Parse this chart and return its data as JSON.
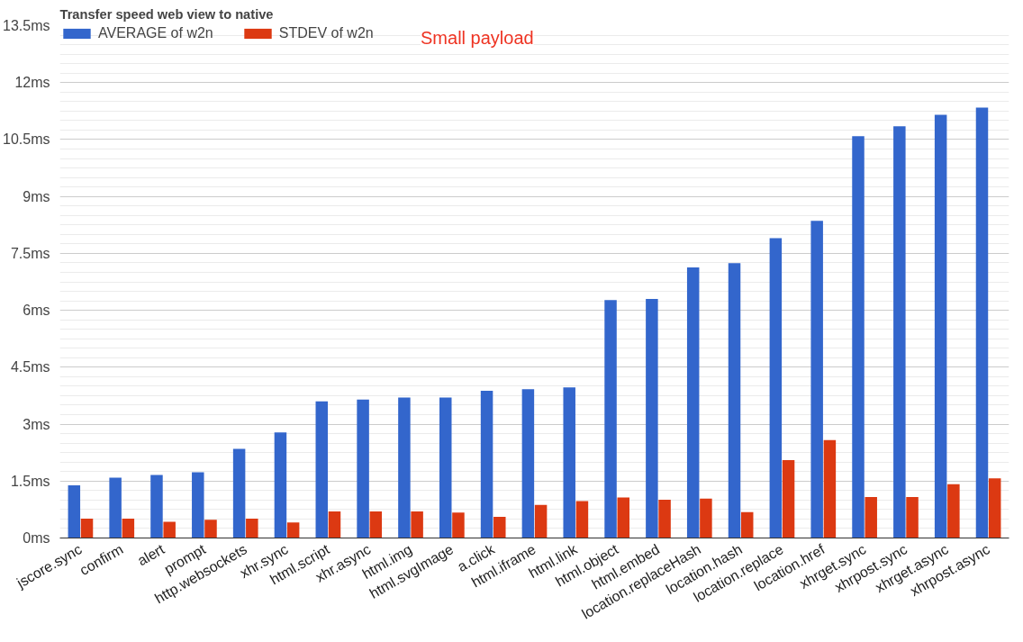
{
  "chart_data": {
    "type": "bar",
    "title": "Transfer speed web view to native",
    "categories": [
      "jscore.sync",
      "confirm",
      "alert",
      "prompt",
      "http.websockets",
      "xhr.sync",
      "html.script",
      "xhr.async",
      "html.img",
      "html.svgImage",
      "a.click",
      "html.iframe",
      "html.link",
      "html.object",
      "html.embed",
      "location.replaceHash",
      "location.hash",
      "location.replace",
      "location.href",
      "xhrget.sync",
      "xhrpost.sync",
      "xhrget.async",
      "xhrpost.async"
    ],
    "series": [
      {
        "name": "AVERAGE of w2n",
        "color": "#3366cc",
        "values": [
          1.39,
          1.59,
          1.66,
          1.73,
          2.35,
          2.78,
          3.6,
          3.65,
          3.7,
          3.7,
          3.88,
          3.92,
          3.97,
          6.27,
          6.3,
          7.13,
          7.24,
          7.9,
          8.36,
          10.59,
          10.85,
          11.15,
          11.34
        ]
      },
      {
        "name": "STDEV of w2n",
        "color": "#dc3912",
        "values": [
          0.51,
          0.51,
          0.43,
          0.48,
          0.51,
          0.41,
          0.7,
          0.7,
          0.7,
          0.67,
          0.56,
          0.87,
          0.97,
          1.07,
          1.01,
          1.04,
          0.68,
          2.05,
          2.58,
          1.08,
          1.08,
          1.42,
          1.57
        ]
      }
    ],
    "annotations": [
      "Small payload"
    ],
    "ylim": [
      0,
      13.5
    ],
    "yticks": [
      {
        "value": 0,
        "label": "0ms"
      },
      {
        "value": 1.5,
        "label": "1.5ms"
      },
      {
        "value": 3,
        "label": "3ms"
      },
      {
        "value": 4.5,
        "label": "4.5ms"
      },
      {
        "value": 6,
        "label": "6ms"
      },
      {
        "value": 7.5,
        "label": "7.5ms"
      },
      {
        "value": 9,
        "label": "9ms"
      },
      {
        "value": 10.5,
        "label": "10.5ms"
      },
      {
        "value": 12,
        "label": "12ms"
      },
      {
        "value": 13.5,
        "label": "13.5ms"
      }
    ],
    "grid": "y",
    "legend": "top left"
  }
}
